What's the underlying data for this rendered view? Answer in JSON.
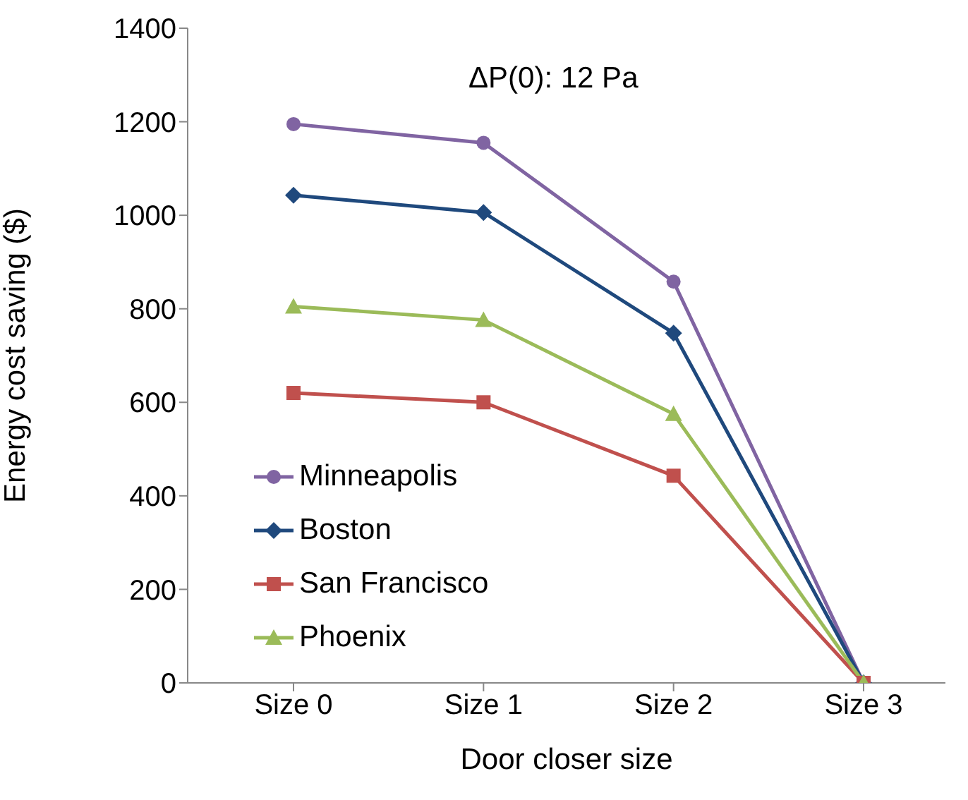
{
  "chart_data": {
    "type": "line",
    "xlabel": "Door closer size",
    "ylabel": "Energy cost saving ($)",
    "annotations": [
      "ΔP(0): 12 Pa"
    ],
    "categories": [
      "Size 0",
      "Size 1",
      "Size 2",
      "Size 3"
    ],
    "series": [
      {
        "name": "Minneapolis",
        "color": "#8064a2",
        "marker": "circle",
        "values": [
          1195,
          1155,
          858,
          0
        ]
      },
      {
        "name": "Boston",
        "color": "#1f497d",
        "marker": "diamond",
        "values": [
          1043,
          1006,
          748,
          0
        ]
      },
      {
        "name": "San Francisco",
        "color": "#c0504d",
        "marker": "square",
        "values": [
          620,
          600,
          443,
          0
        ]
      },
      {
        "name": "Phoenix",
        "color": "#9bbb59",
        "marker": "triangle",
        "values": [
          805,
          776,
          575,
          0
        ]
      }
    ],
    "ylim": [
      0,
      1400
    ],
    "yticks": [
      0,
      200,
      400,
      600,
      800,
      1000,
      1200,
      1400
    ],
    "grid": false,
    "legend": "bottom left",
    "line_style": "solid"
  }
}
